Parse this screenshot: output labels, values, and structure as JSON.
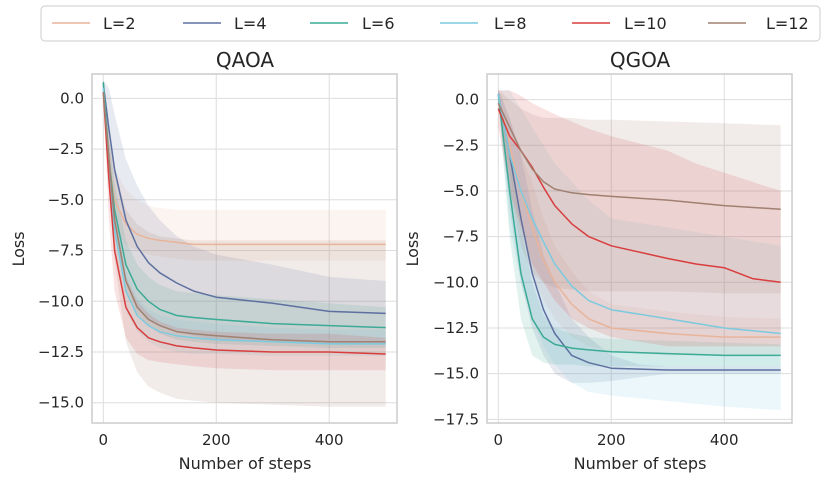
{
  "chart_data": [
    {
      "type": "line",
      "title": "QAOA",
      "xlabel": "Number of steps",
      "ylabel": "Loss",
      "xlim": [
        -20,
        520
      ],
      "ylim": [
        -16.0,
        1.2
      ],
      "xticks": [
        0,
        200,
        400
      ],
      "xtick_labels": [
        "0",
        "200",
        "400"
      ],
      "yticks": [
        0.0,
        -2.5,
        -5.0,
        -7.5,
        -10.0,
        -12.5,
        -15.0
      ],
      "ytick_labels": [
        "0.0",
        "−2.5",
        "−5.0",
        "−7.5",
        "−10.0",
        "−12.5",
        "−15.0"
      ],
      "grid": true,
      "series": [
        {
          "name": "L=2",
          "x": [
            0,
            10,
            20,
            40,
            60,
            80,
            100,
            130,
            160,
            200,
            300,
            400,
            500
          ],
          "y": [
            0.5,
            -3,
            -5,
            -6.2,
            -6.7,
            -6.9,
            -7.0,
            -7.1,
            -7.2,
            -7.2,
            -7.2,
            -7.2,
            -7.2
          ],
          "lo": [
            0.2,
            -4.5,
            -6.5,
            -7.2,
            -7.5,
            -7.7,
            -7.8,
            -7.9,
            -8.0,
            -8.0,
            -8.0,
            -8.0,
            -8.0
          ],
          "hi": [
            0.8,
            -2,
            -3.5,
            -4.5,
            -5.0,
            -5.3,
            -5.4,
            -5.5,
            -5.5,
            -5.5,
            -5.5,
            -5.5,
            -5.5
          ]
        },
        {
          "name": "L=4",
          "x": [
            0,
            10,
            20,
            40,
            60,
            80,
            100,
            130,
            160,
            200,
            300,
            400,
            500
          ],
          "y": [
            0.7,
            -1.5,
            -3.5,
            -6,
            -7.3,
            -8.1,
            -8.6,
            -9.1,
            -9.5,
            -9.8,
            -10.1,
            -10.5,
            -10.6
          ],
          "lo": [
            0.7,
            -3,
            -6,
            -9,
            -10.3,
            -10.9,
            -11.2,
            -11.5,
            -11.7,
            -11.9,
            -12.0,
            -12.1,
            -12.1
          ],
          "hi": [
            0.9,
            0.5,
            -0.8,
            -3,
            -4.3,
            -5.3,
            -6.0,
            -6.8,
            -7.3,
            -7.7,
            -8.2,
            -8.8,
            -9.0
          ]
        },
        {
          "name": "L=6",
          "x": [
            0,
            10,
            20,
            40,
            60,
            80,
            100,
            130,
            160,
            200,
            300,
            400,
            500
          ],
          "y": [
            0.8,
            -3,
            -5.5,
            -8.2,
            -9.4,
            -10.0,
            -10.4,
            -10.7,
            -10.8,
            -10.9,
            -11.1,
            -11.2,
            -11.3
          ],
          "lo": [
            0.6,
            -4,
            -6.8,
            -9.4,
            -10.6,
            -11.2,
            -11.6,
            -11.9,
            -12.0,
            -12.1,
            -12.2,
            -12.3,
            -12.3
          ],
          "hi": [
            0.9,
            -2,
            -4.2,
            -7.0,
            -8.2,
            -8.8,
            -9.2,
            -9.5,
            -9.6,
            -9.7,
            -9.9,
            -10.1,
            -10.3
          ]
        },
        {
          "name": "L=8",
          "x": [
            0,
            10,
            20,
            40,
            60,
            80,
            100,
            130,
            160,
            200,
            300,
            400,
            500
          ],
          "y": [
            0.5,
            -3.5,
            -6.5,
            -9.5,
            -10.7,
            -11.2,
            -11.5,
            -11.7,
            -11.8,
            -11.9,
            -12.0,
            -12.1,
            -12.1
          ],
          "lo": [
            0.3,
            -4.5,
            -7.5,
            -10.5,
            -11.5,
            -12.0,
            -12.3,
            -12.5,
            -12.6,
            -12.6,
            -12.7,
            -12.7,
            -12.7
          ],
          "hi": [
            0.7,
            -2.5,
            -5.5,
            -8.5,
            -9.8,
            -10.4,
            -10.7,
            -10.9,
            -11.0,
            -11.1,
            -11.3,
            -11.4,
            -11.4
          ]
        },
        {
          "name": "L=10",
          "x": [
            0,
            10,
            20,
            40,
            60,
            80,
            100,
            130,
            160,
            200,
            300,
            400,
            500
          ],
          "y": [
            0.3,
            -4,
            -7.5,
            -10.3,
            -11.3,
            -11.8,
            -12.0,
            -12.2,
            -12.3,
            -12.4,
            -12.5,
            -12.5,
            -12.6
          ],
          "lo": [
            0.0,
            -6,
            -9.5,
            -11.8,
            -12.6,
            -12.9,
            -13.0,
            -13.1,
            -13.2,
            -13.3,
            -13.4,
            -13.4,
            -13.4
          ],
          "hi": [
            0.5,
            -2,
            -5.5,
            -8.8,
            -10.0,
            -10.6,
            -11.0,
            -11.3,
            -11.4,
            -11.5,
            -11.6,
            -11.6,
            -11.8
          ]
        },
        {
          "name": "L=12",
          "x": [
            0,
            10,
            20,
            40,
            60,
            80,
            100,
            130,
            160,
            200,
            300,
            400,
            500
          ],
          "y": [
            0.3,
            -3,
            -6,
            -9,
            -10.3,
            -10.9,
            -11.2,
            -11.5,
            -11.6,
            -11.7,
            -11.9,
            -12.0,
            -12.0
          ],
          "lo": [
            0.0,
            -4,
            -8,
            -12,
            -13.5,
            -14.2,
            -14.5,
            -14.8,
            -14.9,
            -15.0,
            -15.1,
            -15.2,
            -15.2
          ],
          "hi": [
            0.5,
            -1.5,
            -3.5,
            -5.5,
            -6.2,
            -6.6,
            -6.8,
            -6.9,
            -7.0,
            -7.0,
            -7.0,
            -7.0,
            -7.0
          ]
        }
      ]
    },
    {
      "type": "line",
      "title": "QGOA",
      "xlabel": "Number of steps",
      "ylabel": "Loss",
      "xlim": [
        -20,
        520
      ],
      "ylim": [
        -17.7,
        1.4
      ],
      "xticks": [
        0,
        200,
        400
      ],
      "xtick_labels": [
        "0",
        "200",
        "400"
      ],
      "yticks": [
        0.0,
        -2.5,
        -5.0,
        -7.5,
        -10.0,
        -12.5,
        -15.0,
        -17.5
      ],
      "ytick_labels": [
        "0.0",
        "−2.5",
        "−5.0",
        "−7.5",
        "−10.0",
        "−12.5",
        "−15.0",
        "−17.5"
      ],
      "grid": true,
      "series": [
        {
          "name": "L=2",
          "x": [
            0,
            20,
            40,
            60,
            80,
            100,
            130,
            160,
            200,
            300,
            400,
            500
          ],
          "y": [
            0.2,
            -2.5,
            -5,
            -7,
            -8.8,
            -10,
            -11.2,
            -12,
            -12.5,
            -12.8,
            -13.0,
            -13.0
          ],
          "lo": [
            0.0,
            -4,
            -7,
            -9.5,
            -11,
            -12,
            -13,
            -13.5,
            -13.8,
            -14.0,
            -14.0,
            -14.0
          ],
          "hi": [
            0.5,
            -1,
            -3,
            -4.5,
            -6.5,
            -8,
            -9.4,
            -10.5,
            -11.2,
            -11.6,
            -11.9,
            -12.0
          ]
        },
        {
          "name": "L=4",
          "x": [
            0,
            20,
            40,
            60,
            80,
            100,
            130,
            160,
            200,
            250,
            300,
            400,
            500
          ],
          "y": [
            0.3,
            -3,
            -6.5,
            -9.5,
            -11.5,
            -12.8,
            -14,
            -14.4,
            -14.7,
            -14.75,
            -14.8,
            -14.8,
            -14.8
          ],
          "lo": [
            0.0,
            -6,
            -10,
            -12.5,
            -14,
            -15,
            -15.5,
            -15.5,
            -15.4,
            -15.2,
            -15.0,
            -15.0,
            -15.0
          ],
          "hi": [
            0.6,
            -1,
            -3,
            -6,
            -8.5,
            -10,
            -12,
            -13,
            -14,
            -14.5,
            -14.6,
            -14.6,
            -14.6
          ]
        },
        {
          "name": "L=6",
          "x": [
            0,
            20,
            40,
            60,
            80,
            100,
            130,
            160,
            200,
            300,
            400,
            500
          ],
          "y": [
            0.3,
            -5,
            -9.5,
            -12,
            -13,
            -13.4,
            -13.6,
            -13.7,
            -13.8,
            -13.9,
            -14.0,
            -14.0
          ],
          "lo": [
            0.0,
            -7.5,
            -12,
            -14,
            -14.4,
            -14.5,
            -14.5,
            -14.6,
            -14.6,
            -14.6,
            -14.6,
            -14.6
          ],
          "hi": [
            0.5,
            -3,
            -7,
            -10,
            -11.8,
            -12.5,
            -12.8,
            -13.0,
            -13.1,
            -13.2,
            -13.3,
            -13.4
          ]
        },
        {
          "name": "L=8",
          "x": [
            0,
            20,
            40,
            60,
            80,
            100,
            130,
            160,
            200,
            300,
            400,
            500
          ],
          "y": [
            0.3,
            -3,
            -5,
            -6.5,
            -7.8,
            -9,
            -10.2,
            -11,
            -11.5,
            -12,
            -12.5,
            -12.8
          ],
          "lo": [
            0.0,
            -7,
            -10,
            -12,
            -13.5,
            -14.5,
            -15.5,
            -16,
            -16.2,
            -16.5,
            -16.8,
            -17.0
          ],
          "hi": [
            0.5,
            0.5,
            -0.5,
            -1.5,
            -2.5,
            -3.5,
            -4.5,
            -5.5,
            -6.5,
            -7,
            -7.5,
            -8.0
          ]
        },
        {
          "name": "L=10",
          "x": [
            0,
            20,
            40,
            60,
            80,
            100,
            130,
            160,
            200,
            300,
            350,
            400,
            450,
            500
          ],
          "y": [
            -0.5,
            -2.0,
            -2.8,
            -3.7,
            -4.8,
            -5.8,
            -6.8,
            -7.5,
            -8.0,
            -8.7,
            -9.0,
            -9.2,
            -9.8,
            -10.0
          ],
          "lo": [
            -1.5,
            -5,
            -7,
            -9,
            -10,
            -11,
            -12,
            -12.5,
            -13,
            -13.5,
            -13.5,
            -13.5,
            -13.5,
            -13.5
          ],
          "hi": [
            0.5,
            0.5,
            0.2,
            -0.2,
            -0.5,
            -0.8,
            -1.2,
            -1.6,
            -2.0,
            -2.8,
            -3.5,
            -4,
            -4.5,
            -5.0
          ]
        },
        {
          "name": "L=12",
          "x": [
            0,
            20,
            40,
            60,
            80,
            100,
            130,
            160,
            200,
            300,
            400,
            500
          ],
          "y": [
            -0.2,
            -1.5,
            -2.8,
            -3.8,
            -4.5,
            -4.9,
            -5.1,
            -5.2,
            -5.3,
            -5.5,
            -5.8,
            -6.0
          ],
          "lo": [
            -0.5,
            -5,
            -8,
            -9.5,
            -10,
            -10.3,
            -10.4,
            -10.5,
            -10.5,
            -10.5,
            -10.6,
            -10.6
          ],
          "hi": [
            0.5,
            0.0,
            -0.5,
            -0.8,
            -1.0,
            -1.0,
            -1.0,
            -1.1,
            -1.1,
            -1.2,
            -1.3,
            -1.4
          ]
        }
      ]
    }
  ],
  "legend": {
    "placement": "top",
    "entries": [
      {
        "label": "L=2",
        "color": "#e8b49a"
      },
      {
        "label": "L=4",
        "color": "#5d70a0"
      },
      {
        "label": "L=6",
        "color": "#3bab96"
      },
      {
        "label": "L=8",
        "color": "#7ccadf"
      },
      {
        "label": "L=10",
        "color": "#d93d3d"
      },
      {
        "label": "L=12",
        "color": "#a08070"
      }
    ]
  },
  "band_alpha": 0.15
}
